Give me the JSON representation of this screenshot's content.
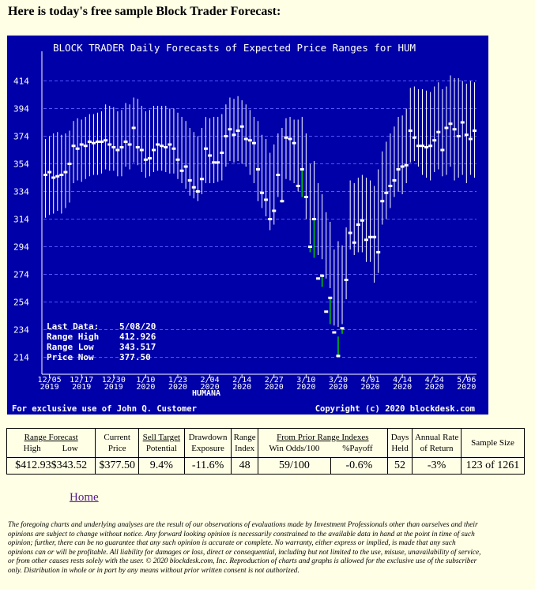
{
  "page": {
    "heading": "Here is today's free sample Block Trader Forecast:",
    "home_link": "Home",
    "disclaimer": "The foregoing charts and underlying analyses are the result of our observations of evaluations made by Investment Professionals other than ourselves and their opinions are subject to change without notice. Any forward looking opinion is necessarily constrained to the available data in hand at the point in time of such opinion; further, there can be no guarantee that any such opinion is accurate or complete. No warranty, either express or implied, is made that any such opinions can or will be profitable. All liability for damages or loss, direct or consequential, including but not limited to the use, misuse, unavailability of service, or from other causes rests solely with the user. © 2020 blockdesk.com, Inc. Reproduction of charts and graphs is allowed for the exclusive use of the subscriber only. Distribution in whole or in part by any means without prior written consent is not authorized."
  },
  "chart_data": {
    "type": "range-bar",
    "title": "BLOCK TRADER Daily Forecasts of Expected Price Ranges for HUM",
    "xlabel": "HUMANA",
    "ylim": [
      204,
      424
    ],
    "yticks": [
      414,
      394,
      374,
      354,
      334,
      314,
      294,
      274,
      254,
      234,
      214
    ],
    "xtick_labels": [
      {
        "date": "12/05",
        "year": "2019",
        "index": 1
      },
      {
        "date": "12/17",
        "year": "2019",
        "index": 9
      },
      {
        "date": "12/30",
        "year": "2019",
        "index": 17
      },
      {
        "date": "1/10",
        "year": "2020",
        "index": 25
      },
      {
        "date": "1/23",
        "year": "2020",
        "index": 33
      },
      {
        "date": "2/04",
        "year": "2020",
        "index": 41
      },
      {
        "date": "2/14",
        "year": "2020",
        "index": 49
      },
      {
        "date": "2/27",
        "year": "2020",
        "index": 57
      },
      {
        "date": "3/10",
        "year": "2020",
        "index": 65
      },
      {
        "date": "3/20",
        "year": "2020",
        "index": 73
      },
      {
        "date": "4/01",
        "year": "2020",
        "index": 81
      },
      {
        "date": "4/14",
        "year": "2020",
        "index": 89
      },
      {
        "date": "4/24",
        "year": "2020",
        "index": 97
      },
      {
        "date": "5/06",
        "year": "2020",
        "index": 105
      }
    ],
    "series": [
      {
        "high": 372,
        "low": 315,
        "price": 346
      },
      {
        "high": 374,
        "low": 317,
        "price": 348
      },
      {
        "high": 376,
        "low": 318,
        "price": 344
      },
      {
        "high": 377,
        "low": 320,
        "price": 345
      },
      {
        "high": 375,
        "low": 318,
        "price": 346
      },
      {
        "high": 376,
        "low": 322,
        "price": 348
      },
      {
        "high": 378,
        "low": 326,
        "price": 354
      },
      {
        "high": 385,
        "low": 340,
        "price": 367
      },
      {
        "high": 387,
        "low": 342,
        "price": 365
      },
      {
        "high": 386,
        "low": 341,
        "price": 368
      },
      {
        "high": 388,
        "low": 343,
        "price": 367
      },
      {
        "high": 390,
        "low": 345,
        "price": 370
      },
      {
        "high": 390,
        "low": 346,
        "price": 369
      },
      {
        "high": 391,
        "low": 346,
        "price": 370
      },
      {
        "high": 392,
        "low": 347,
        "price": 370
      },
      {
        "high": 397,
        "low": 350,
        "price": 371
      },
      {
        "high": 396,
        "low": 349,
        "price": 368
      },
      {
        "high": 395,
        "low": 349,
        "price": 366
      },
      {
        "high": 392,
        "low": 345,
        "price": 364
      },
      {
        "high": 393,
        "low": 345,
        "price": 366
      },
      {
        "high": 398,
        "low": 352,
        "price": 370
      },
      {
        "high": 397,
        "low": 350,
        "price": 368
      },
      {
        "high": 402,
        "low": 355,
        "price": 380
      },
      {
        "high": 401,
        "low": 353,
        "price": 366
      },
      {
        "high": 396,
        "low": 348,
        "price": 364
      },
      {
        "high": 392,
        "low": 344,
        "price": 357
      },
      {
        "high": 393,
        "low": 345,
        "price": 358
      },
      {
        "high": 396,
        "low": 348,
        "price": 364
      },
      {
        "high": 396,
        "low": 349,
        "price": 368
      },
      {
        "high": 396,
        "low": 349,
        "price": 367
      },
      {
        "high": 396,
        "low": 348,
        "price": 366
      },
      {
        "high": 394,
        "low": 347,
        "price": 368
      },
      {
        "high": 394,
        "low": 347,
        "price": 365
      },
      {
        "high": 391,
        "low": 343,
        "price": 357
      },
      {
        "high": 388,
        "low": 340,
        "price": 349
      },
      {
        "high": 385,
        "low": 336,
        "price": 352
      },
      {
        "high": 380,
        "low": 331,
        "price": 342
      },
      {
        "high": 377,
        "low": 329,
        "price": 337
      },
      {
        "high": 374,
        "low": 327,
        "price": 334
      },
      {
        "high": 380,
        "low": 332,
        "price": 343
      },
      {
        "high": 388,
        "low": 340,
        "price": 365
      },
      {
        "high": 387,
        "low": 340,
        "price": 360
      },
      {
        "high": 388,
        "low": 340,
        "price": 355
      },
      {
        "high": 388,
        "low": 341,
        "price": 355
      },
      {
        "high": 390,
        "low": 342,
        "price": 362
      },
      {
        "high": 397,
        "low": 352,
        "price": 374
      },
      {
        "high": 402,
        "low": 356,
        "price": 379
      },
      {
        "high": 401,
        "low": 355,
        "price": 375
      },
      {
        "high": 403,
        "low": 356,
        "price": 378
      },
      {
        "high": 400,
        "low": 354,
        "price": 381
      },
      {
        "high": 397,
        "low": 352,
        "price": 372
      },
      {
        "high": 393,
        "low": 346,
        "price": 371
      },
      {
        "high": 388,
        "low": 340,
        "price": 369
      },
      {
        "high": 385,
        "low": 327,
        "price": 350
      },
      {
        "high": 375,
        "low": 322,
        "price": 333
      },
      {
        "high": 372,
        "low": 316,
        "price": 328
      },
      {
        "high": 362,
        "low": 306,
        "price": 314
      },
      {
        "high": 368,
        "low": 310,
        "price": 320
      },
      {
        "high": 376,
        "low": 330,
        "price": 346
      },
      {
        "high": 380,
        "low": 326,
        "price": 327
      },
      {
        "high": 387,
        "low": 343,
        "price": 373
      },
      {
        "high": 388,
        "low": 342,
        "price": 372
      },
      {
        "high": 386,
        "low": 340,
        "price": 369
      },
      {
        "high": 386,
        "low": 334,
        "price": 338
      },
      {
        "high": 388,
        "low": 338,
        "price": 350
      },
      {
        "high": 376,
        "low": 314,
        "price": 330
      },
      {
        "high": 354,
        "low": 296,
        "price": 294
      },
      {
        "high": 356,
        "low": 298,
        "price": 314
      },
      {
        "high": 340,
        "low": 288,
        "price": 271
      },
      {
        "high": 332,
        "low": 285,
        "price": 273
      },
      {
        "high": 319,
        "low": 271,
        "price": 247
      },
      {
        "high": 312,
        "low": 264,
        "price": 257
      },
      {
        "high": 292,
        "low": 237,
        "price": 232
      },
      {
        "high": 298,
        "low": 236,
        "price": 215
      },
      {
        "high": 295,
        "low": 238,
        "price": 235
      },
      {
        "high": 308,
        "low": 256,
        "price": 270
      },
      {
        "high": 342,
        "low": 292,
        "price": 304
      },
      {
        "high": 340,
        "low": 288,
        "price": 297
      },
      {
        "high": 344,
        "low": 290,
        "price": 310
      },
      {
        "high": 346,
        "low": 290,
        "price": 313
      },
      {
        "high": 344,
        "low": 283,
        "price": 299
      },
      {
        "high": 342,
        "low": 283,
        "price": 301
      },
      {
        "high": 338,
        "low": 268,
        "price": 301
      },
      {
        "high": 350,
        "low": 275,
        "price": 290
      },
      {
        "high": 363,
        "low": 310,
        "price": 327
      },
      {
        "high": 370,
        "low": 314,
        "price": 333
      },
      {
        "high": 376,
        "low": 322,
        "price": 338
      },
      {
        "high": 381,
        "low": 330,
        "price": 342
      },
      {
        "high": 388,
        "low": 334,
        "price": 350
      },
      {
        "high": 389,
        "low": 332,
        "price": 352
      },
      {
        "high": 394,
        "low": 340,
        "price": 353
      },
      {
        "high": 409,
        "low": 355,
        "price": 378
      },
      {
        "high": 410,
        "low": 356,
        "price": 373
      },
      {
        "high": 408,
        "low": 352,
        "price": 367
      },
      {
        "high": 408,
        "low": 346,
        "price": 367
      },
      {
        "high": 407,
        "low": 344,
        "price": 366
      },
      {
        "high": 406,
        "low": 342,
        "price": 367
      },
      {
        "high": 410,
        "low": 348,
        "price": 371
      },
      {
        "high": 413,
        "low": 350,
        "price": 377
      },
      {
        "high": 408,
        "low": 345,
        "price": 364
      },
      {
        "high": 410,
        "low": 346,
        "price": 380
      },
      {
        "high": 418,
        "low": 352,
        "price": 383
      },
      {
        "high": 416,
        "low": 342,
        "price": 379
      },
      {
        "high": 416,
        "low": 344,
        "price": 374
      },
      {
        "high": 414,
        "low": 346,
        "price": 384
      },
      {
        "high": 412,
        "low": 340,
        "price": 375
      },
      {
        "high": 414,
        "low": 346,
        "price": 372
      },
      {
        "high": 413,
        "low": 344,
        "price": 378
      }
    ],
    "green_bars": [
      57,
      64,
      66,
      67,
      69,
      71,
      73,
      74
    ],
    "green_low_overrides": {
      "57": "320",
      "64": "330",
      "66": "290",
      "67": "286",
      "69": "265",
      "71": "238",
      "73": "229",
      "74": "231"
    },
    "info": [
      {
        "label": "Last Data:",
        "value": "5/08/20"
      },
      {
        "label": "Range High",
        "value": "412.926"
      },
      {
        "label": "Range Low",
        "value": "343.517"
      },
      {
        "label": "Price Now",
        "value": "377.50"
      }
    ],
    "footer_left": "For exclusive use of John Q. Customer",
    "footer_right": "Copyright (c) 2020 blockdesk.com"
  },
  "colors": {
    "chart_bg": "#0000a8",
    "bar": "#ffffff",
    "green_bar": "#00cc00",
    "axis_text": "#ffffff",
    "grid": "#5555ff"
  },
  "table": {
    "headers": {
      "range_forecast": "Range Forecast",
      "high": "High",
      "low": "Low",
      "current": "Current",
      "price": "Price",
      "sell_target": "Sell Target",
      "potential": "Potential",
      "drawdown": "Drawdown",
      "exposure": "Exposure",
      "range": "Range",
      "index": "Index",
      "from_prior": "From Prior Range Indexes",
      "win_odds": "Win Odds/100",
      "payoff": "%Payoff",
      "days": "Days",
      "held": "Held",
      "annual": "Annual Rate",
      "of_return": "of Return",
      "sample_size": "Sample Size"
    },
    "values": {
      "high": "$412.93",
      "low": "$343.52",
      "price": "$377.50",
      "potential": "9.4%",
      "exposure": "-11.6%",
      "range_index": "48",
      "win_odds": "59/100",
      "payoff": "-0.6%",
      "days_held": "52",
      "annual_return": "-3%",
      "sample_size": "123 of 1261"
    }
  }
}
